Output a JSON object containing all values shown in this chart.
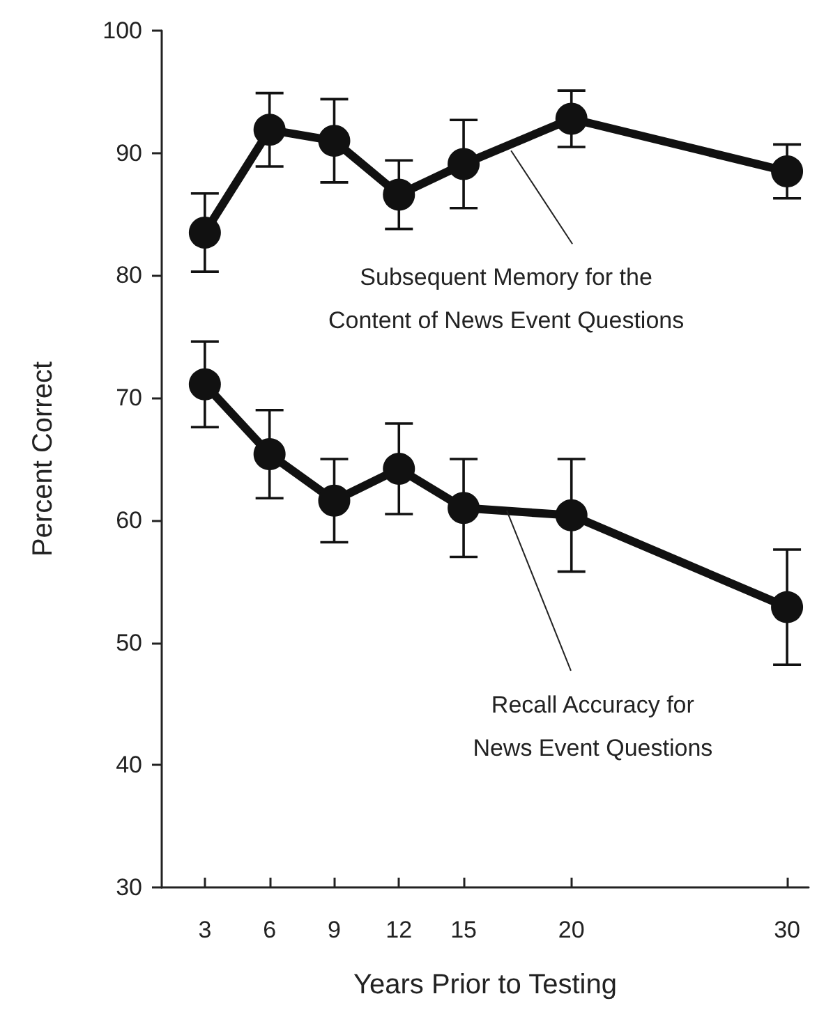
{
  "chart_data": {
    "type": "line",
    "xlabel": "Years Prior to Testing",
    "ylabel": "Percent Correct",
    "x": [
      3,
      6,
      9,
      12,
      15,
      20,
      30
    ],
    "series": [
      {
        "color": "#111111",
        "values": [
          83.5,
          91.9,
          91.0,
          86.6,
          89.1,
          92.8,
          88.5
        ],
        "errors": [
          3.2,
          3.0,
          3.4,
          2.8,
          3.6,
          2.3,
          2.2
        ]
      },
      {
        "color": "#111111",
        "values": [
          71.1,
          65.4,
          61.6,
          64.2,
          61.0,
          60.4,
          52.9
        ],
        "errors": [
          3.5,
          3.6,
          3.4,
          3.7,
          4.0,
          4.6,
          4.7
        ]
      }
    ],
    "xlim": [
      1,
      31
    ],
    "xticks": [
      3,
      6,
      9,
      12,
      15,
      20,
      30
    ],
    "ylim": [
      30,
      100
    ],
    "yticks": [
      30,
      40,
      50,
      60,
      70,
      80,
      90,
      100
    ],
    "grid": false,
    "marker": "circle",
    "line_style": "solid",
    "annotations": [
      {
        "text": "Subsequent Memory for the\nContent of News Event Questions",
        "x": 17.2,
        "y": 90.2
      },
      {
        "text": "Recall Accuracy for\nNews Event Questions",
        "x": 17.0,
        "y": 60.8
      }
    ]
  }
}
